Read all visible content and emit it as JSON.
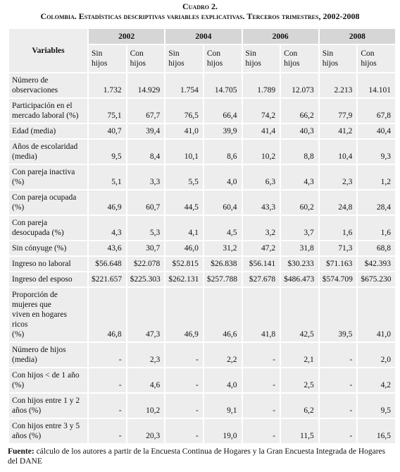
{
  "header": {
    "number": "Cuadro 2.",
    "title": "Colombia. Estadísticas descriptivas variables explicativas. Terceros trimestres, 2002-2008"
  },
  "table": {
    "corner": "Variables",
    "years": [
      "2002",
      "2004",
      "2006",
      "2008"
    ],
    "subheaders": [
      "Sin\nhijos",
      "Con\nhijos"
    ],
    "rows": [
      {
        "label": "Número de\nobservaciones",
        "values": [
          "1.732",
          "14.929",
          "1.754",
          "14.705",
          "1.789",
          "12.073",
          "2.213",
          "14.101"
        ]
      },
      {
        "label": "Participación en el\nmercado laboral (%)",
        "values": [
          "75,1",
          "67,7",
          "76,5",
          "66,4",
          "74,2",
          "66,2",
          "77,9",
          "67,8"
        ]
      },
      {
        "label": "Edad (media)",
        "values": [
          "40,7",
          "39,4",
          "41,0",
          "39,9",
          "41,4",
          "40,3",
          "41,2",
          "40,4"
        ]
      },
      {
        "label": "Años de escolaridad\n(media)",
        "values": [
          "9,5",
          "8,4",
          "10,1",
          "8,6",
          "10,2",
          "8,8",
          "10,4",
          "9,3"
        ]
      },
      {
        "label": "Con pareja inactiva\n(%)",
        "values": [
          "5,1",
          "3,3",
          "5,5",
          "4,0",
          "6,3",
          "4,3",
          "2,3",
          "1,2"
        ]
      },
      {
        "label": "Con pareja ocupada\n(%)",
        "values": [
          "46,9",
          "60,7",
          "44,5",
          "60,4",
          "43,3",
          "60,2",
          "24,8",
          "28,4"
        ]
      },
      {
        "label": "Con pareja\ndesocupada (%)",
        "values": [
          "4,3",
          "5,3",
          "4,1",
          "4,5",
          "3,2",
          "3,7",
          "1,6",
          "1,6"
        ]
      },
      {
        "label": "Sin cónyuge (%)",
        "values": [
          "43,6",
          "30,7",
          "46,0",
          "31,2",
          "47,2",
          "31,8",
          "71,3",
          "68,8"
        ]
      },
      {
        "label": "Ingreso no laboral",
        "values": [
          "$56.648",
          "$22.078",
          "$52.815",
          "$26.838",
          "$56.141",
          "$30.233",
          "$71.163",
          "$42.393"
        ]
      },
      {
        "label": "Ingreso del esposo",
        "values": [
          "$221.657",
          "$225.303",
          "$262.131",
          "$257.788",
          "$27.678",
          "$486.473",
          "$574.709",
          "$675.230"
        ]
      },
      {
        "label": "Proporción de\nmujeres que\nviven en hogares ricos\n(%)",
        "values": [
          "46,8",
          "47,3",
          "46,9",
          "46,6",
          "41,8",
          "42,5",
          "39,5",
          "41,0"
        ]
      },
      {
        "label": "Número de hijos\n(media)",
        "values": [
          "-",
          "2,3",
          "-",
          "2,2",
          "-",
          "2,1",
          "-",
          "2,0"
        ]
      },
      {
        "label": "Con hijos < de 1 año\n(%)",
        "values": [
          "-",
          "4,6",
          "-",
          "4,0",
          "-",
          "2,5",
          "-",
          "4,2"
        ]
      },
      {
        "label": "Con hijos entre 1 y 2\naños (%)",
        "values": [
          "-",
          "10,2",
          "-",
          "9,1",
          "-",
          "6,2",
          "-",
          "9,5"
        ]
      },
      {
        "label": "Con hijos entre 3 y 5\naños (%)",
        "values": [
          "-",
          "20,3",
          "-",
          "19,0",
          "-",
          "11,5",
          "-",
          "16,5"
        ]
      }
    ]
  },
  "source": {
    "label": "Fuente:",
    "text": "cálculo de los autores a partir de la Encuesta Continua de Hogares y la Gran Encuesta Integrada de Hogares del DANE"
  }
}
